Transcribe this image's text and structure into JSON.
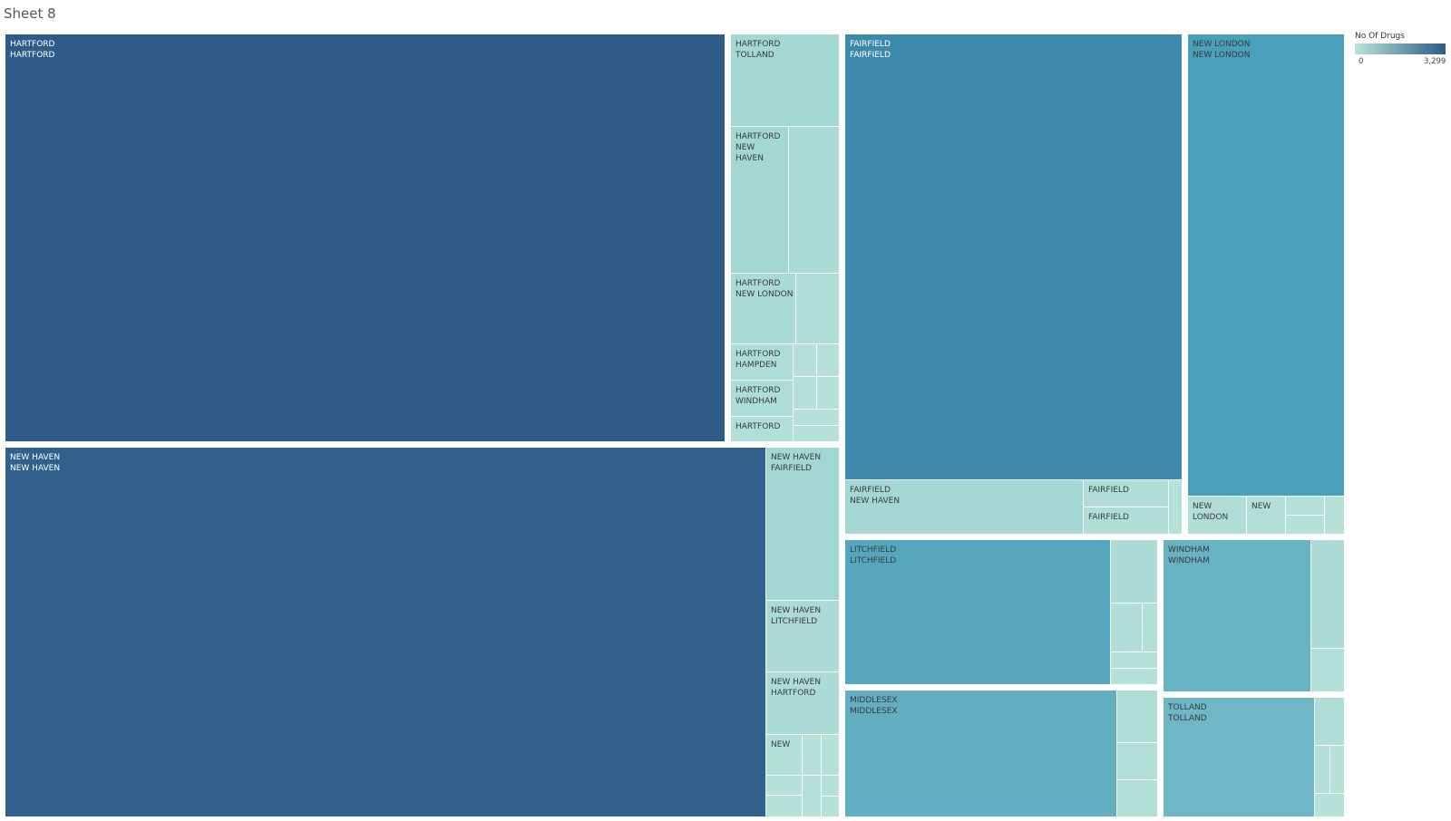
{
  "sheet": {
    "title": "Sheet 8"
  },
  "legend": {
    "title": "No Of Drugs",
    "min_label": "0",
    "max_label": "3,299",
    "min_color": "#b9e3d8",
    "max_color": "#2e5b88"
  },
  "chart_data": {
    "type": "treemap",
    "title": "Sheet 8",
    "measure": "No Of Drugs",
    "color_range": [
      0,
      3299
    ],
    "groups": [
      {
        "name": "HARTFORD",
        "cells": [
          {
            "label": "HARTFORD\nHARTFORD",
            "value": 3299
          },
          {
            "label": "HARTFORD\nTOLLAND",
            "value": 140
          },
          {
            "label": "HARTFORD\nNEW\nHAVEN",
            "value": 140
          },
          {
            "label": "",
            "value": 80
          },
          {
            "label": "HARTFORD\nNEW LONDON",
            "value": 80
          },
          {
            "label": "",
            "value": 40
          },
          {
            "label": "HARTFORD\nHAMPDEN",
            "value": 50
          },
          {
            "label": "HARTFORD\nWINDHAM",
            "value": 50
          },
          {
            "label": "HARTFORD",
            "value": 30
          },
          {
            "label": "",
            "value": 15
          },
          {
            "label": "",
            "value": 15
          },
          {
            "label": "",
            "value": 15
          },
          {
            "label": "",
            "value": 15
          },
          {
            "label": "",
            "value": 8
          },
          {
            "label": "",
            "value": 8
          }
        ]
      },
      {
        "name": "NEW HAVEN",
        "cells": [
          {
            "label": "NEW HAVEN\nNEW HAVEN",
            "value": 3150
          },
          {
            "label": "NEW HAVEN\nFAIRFIELD",
            "value": 150
          },
          {
            "label": "NEW HAVEN\nLITCHFIELD",
            "value": 70
          },
          {
            "label": "NEW HAVEN\nHARTFORD",
            "value": 60
          },
          {
            "label": "NEW",
            "value": 25
          },
          {
            "label": "",
            "value": 12
          },
          {
            "label": "",
            "value": 12
          },
          {
            "label": "",
            "value": 12
          },
          {
            "label": "",
            "value": 12
          },
          {
            "label": "",
            "value": 12
          },
          {
            "label": "",
            "value": 12
          },
          {
            "label": "",
            "value": 12
          }
        ]
      },
      {
        "name": "FAIRFIELD",
        "cells": [
          {
            "label": "FAIRFIELD\nFAIRFIELD",
            "value": 2250
          },
          {
            "label": "FAIRFIELD\nNEW HAVEN",
            "value": 130
          },
          {
            "label": "FAIRFIELD",
            "value": 35
          },
          {
            "label": "FAIRFIELD",
            "value": 35
          },
          {
            "label": "",
            "value": 12
          }
        ]
      },
      {
        "name": "NEW LONDON",
        "cells": [
          {
            "label": "NEW LONDON\nNEW LONDON",
            "value": 1150
          },
          {
            "label": "NEW\nLONDON",
            "value": 35
          },
          {
            "label": "NEW",
            "value": 25
          },
          {
            "label": "",
            "value": 10
          },
          {
            "label": "",
            "value": 10
          },
          {
            "label": "",
            "value": 10
          }
        ]
      },
      {
        "name": "LITCHFIELD",
        "cells": [
          {
            "label": "LITCHFIELD\nLITCHFIELD",
            "value": 1000
          },
          {
            "label": "",
            "value": 60
          },
          {
            "label": "",
            "value": 35
          },
          {
            "label": "",
            "value": 20
          },
          {
            "label": "",
            "value": 12
          },
          {
            "label": "",
            "value": 12
          }
        ]
      },
      {
        "name": "WINDHAM",
        "cells": [
          {
            "label": "WINDHAM\nWINDHAM",
            "value": 780
          },
          {
            "label": "",
            "value": 60
          },
          {
            "label": "",
            "value": 30
          }
        ]
      },
      {
        "name": "MIDDLESEX",
        "cells": [
          {
            "label": "MIDDLESEX\nMIDDLESEX",
            "value": 850
          },
          {
            "label": "",
            "value": 40
          },
          {
            "label": "",
            "value": 30
          },
          {
            "label": "",
            "value": 25
          }
        ]
      },
      {
        "name": "TOLLAND",
        "cells": [
          {
            "label": "TOLLAND\nTOLLAND",
            "value": 700
          },
          {
            "label": "",
            "value": 35
          },
          {
            "label": "",
            "value": 25
          },
          {
            "label": "",
            "value": 12
          },
          {
            "label": "",
            "value": 12
          }
        ]
      }
    ]
  }
}
